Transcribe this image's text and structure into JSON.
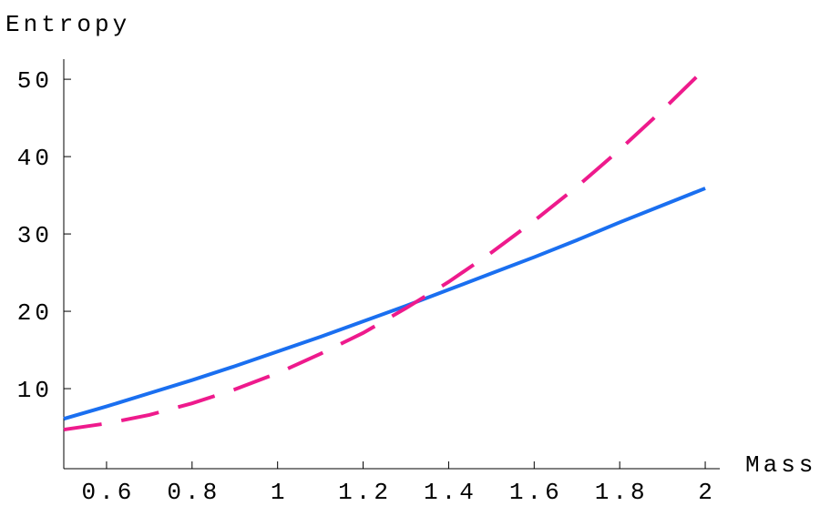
{
  "chart_data": {
    "type": "line",
    "y_label": "Entropy",
    "x_label": "Mass",
    "x": [
      0.5,
      0.6,
      0.7,
      0.8,
      0.9,
      1.0,
      1.1,
      1.2,
      1.3,
      1.4,
      1.5,
      1.6,
      1.7,
      1.8,
      1.9,
      2.0
    ],
    "series": [
      {
        "color": "#1a6ff0",
        "dashed": false,
        "values": [
          6.1,
          7.7,
          9.4,
          11.1,
          12.9,
          14.8,
          16.7,
          18.7,
          20.7,
          22.8,
          24.9,
          27.0,
          29.2,
          31.5,
          33.7,
          35.9
        ]
      },
      {
        "color": "#ee1a8c",
        "dashed": true,
        "values": [
          4.7,
          5.5,
          6.6,
          8.1,
          9.9,
          12.0,
          14.5,
          17.2,
          20.4,
          23.8,
          27.6,
          31.7,
          36.1,
          40.9,
          46.0,
          51.4
        ]
      }
    ],
    "xlim": [
      0.5,
      2.034
    ],
    "ylim": [
      -0.35,
      52.6
    ],
    "xticks": [
      0.6,
      0.8,
      1,
      1.2,
      1.4,
      1.6,
      1.8,
      2
    ],
    "yticks": [
      10,
      20,
      30,
      40,
      50
    ]
  }
}
